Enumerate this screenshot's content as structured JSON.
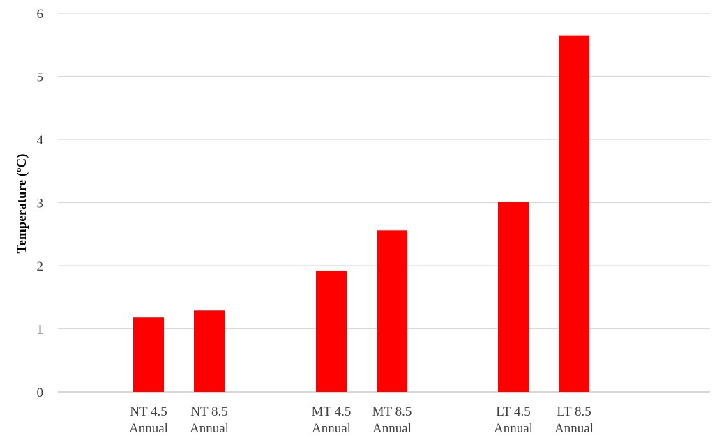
{
  "chart_data": {
    "type": "bar",
    "ylabel": "Temperature (ºC)",
    "ylim": [
      0,
      6
    ],
    "yticks": [
      0,
      1,
      2,
      3,
      4,
      5,
      6
    ],
    "grid": true,
    "legend": "none",
    "bar_color": "#FF0000",
    "categories": [
      [
        "NT 4.5",
        "Annual"
      ],
      [
        "NT 8.5",
        "Annual"
      ],
      [
        "MT 4.5",
        "Annual"
      ],
      [
        "MT 8.5",
        "Annual"
      ],
      [
        "LT 4.5",
        "Annual"
      ],
      [
        "LT 8.5",
        "Annual"
      ]
    ],
    "values": [
      1.18,
      1.29,
      1.92,
      2.56,
      3.01,
      5.65
    ]
  }
}
